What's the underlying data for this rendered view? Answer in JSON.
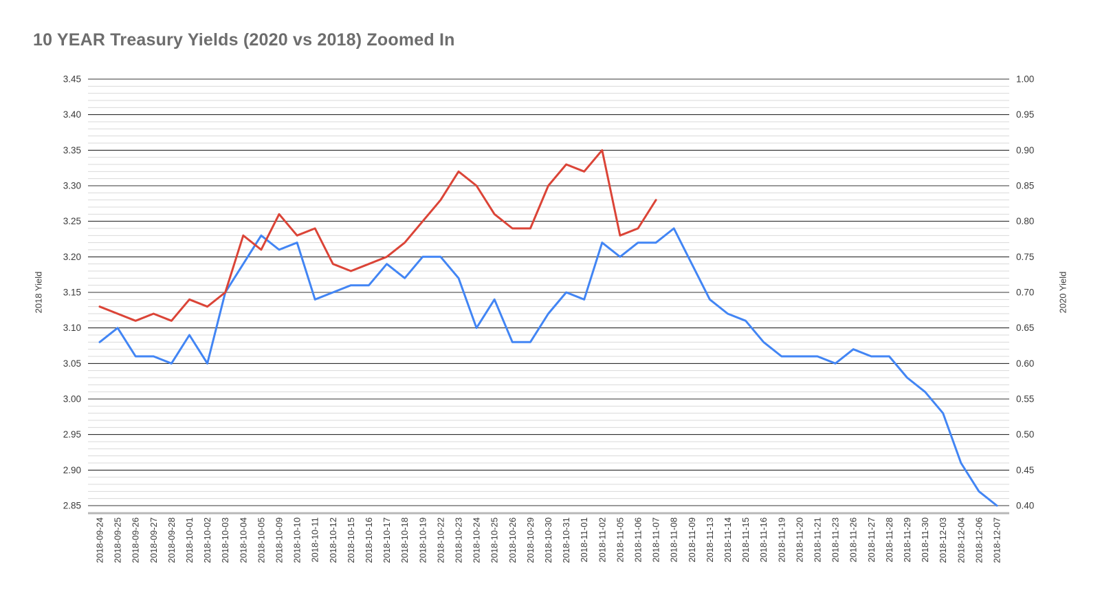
{
  "title": "10 YEAR Treasury Yields (2020 vs 2018) Zoomed In",
  "chart_data": {
    "type": "line",
    "title": "10 YEAR Treasury Yields (2020 vs 2018) Zoomed In",
    "grid": true,
    "legend_position": "none",
    "categories": [
      "2018-09-24",
      "2018-09-25",
      "2018-09-26",
      "2018-09-27",
      "2018-09-28",
      "2018-10-01",
      "2018-10-02",
      "2018-10-03",
      "2018-10-04",
      "2018-10-05",
      "2018-10-09",
      "2018-10-10",
      "2018-10-11",
      "2018-10-12",
      "2018-10-15",
      "2018-10-16",
      "2018-10-17",
      "2018-10-18",
      "2018-10-19",
      "2018-10-22",
      "2018-10-23",
      "2018-10-24",
      "2018-10-25",
      "2018-10-26",
      "2018-10-29",
      "2018-10-30",
      "2018-10-31",
      "2018-11-01",
      "2018-11-02",
      "2018-11-05",
      "2018-11-06",
      "2018-11-07",
      "2018-11-08",
      "2018-11-09",
      "2018-11-13",
      "2018-11-14",
      "2018-11-15",
      "2018-11-16",
      "2018-11-19",
      "2018-11-20",
      "2018-11-21",
      "2018-11-23",
      "2018-11-26",
      "2018-11-27",
      "2018-11-28",
      "2018-11-29",
      "2018-11-30",
      "2018-12-03",
      "2018-12-04",
      "2018-12-06",
      "2018-12-07"
    ],
    "series": [
      {
        "name": "2018 Yield",
        "axis": "left",
        "color": "#4285F4",
        "values": [
          3.08,
          3.1,
          3.06,
          3.06,
          3.05,
          3.09,
          3.05,
          3.15,
          3.19,
          3.23,
          3.21,
          3.22,
          3.14,
          3.15,
          3.16,
          3.16,
          3.19,
          3.17,
          3.2,
          3.2,
          3.17,
          3.1,
          3.14,
          3.08,
          3.08,
          3.12,
          3.15,
          3.14,
          3.22,
          3.2,
          3.22,
          3.22,
          3.24,
          3.19,
          3.14,
          3.12,
          3.11,
          3.08,
          3.06,
          3.06,
          3.06,
          3.05,
          3.07,
          3.06,
          3.06,
          3.03,
          3.01,
          2.98,
          2.91,
          2.87,
          2.85
        ]
      },
      {
        "name": "2020 Yield",
        "axis": "right",
        "color": "#DB4437",
        "values": [
          0.68,
          0.67,
          0.66,
          0.67,
          0.66,
          0.69,
          0.68,
          0.7,
          0.78,
          0.76,
          0.81,
          0.78,
          0.79,
          0.74,
          0.73,
          0.74,
          0.75,
          0.77,
          0.8,
          0.83,
          0.87,
          0.85,
          0.81,
          0.79,
          0.79,
          0.85,
          0.88,
          0.87,
          0.9,
          0.78,
          0.79,
          0.83
        ]
      }
    ],
    "left_axis": {
      "label": "2018 Yield",
      "min": 2.85,
      "max": 3.45,
      "tick_step": 0.05,
      "minor_step": 0.01,
      "ticks": [
        "3.45",
        "3.40",
        "3.35",
        "3.30",
        "3.25",
        "3.20",
        "3.15",
        "3.10",
        "3.05",
        "3.00",
        "2.95",
        "2.90",
        "2.85"
      ]
    },
    "right_axis": {
      "label": "2020 Yield",
      "min": 0.4,
      "max": 1.0,
      "tick_step": 0.05,
      "minor_step": 0.01,
      "ticks": [
        "1.00",
        "0.95",
        "0.90",
        "0.85",
        "0.80",
        "0.75",
        "0.70",
        "0.65",
        "0.60",
        "0.55",
        "0.50",
        "0.45",
        "0.40"
      ]
    },
    "colors": {
      "title": "#6d6d6d",
      "tick_label": "#3a3a3a",
      "axis_title": "#3d3d3d",
      "grid_minor": "#d9d9d9",
      "grid_major": "#111111",
      "grid_emphasis": "#9a9a9a",
      "axis_line": "#b7b7b7",
      "background": "#ffffff"
    },
    "emphasis_gridlines_left_values": [
      3.45,
      3.3,
      3.15,
      3.0,
      2.85
    ]
  }
}
